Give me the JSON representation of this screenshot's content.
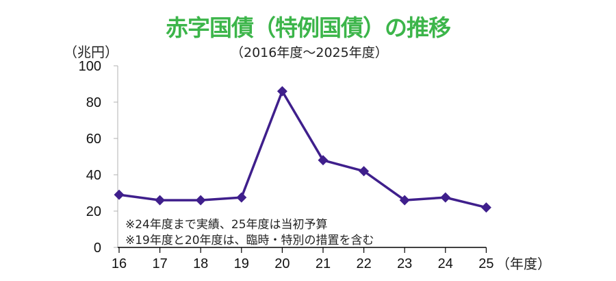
{
  "colors": {
    "title": "#3cb54a",
    "line": "#3f1f8c",
    "axis": "#000000",
    "y_axis": "#b0b0b0"
  },
  "chart_data": {
    "type": "line",
    "title": "赤字国債（特例国債）の推移",
    "subtitle": "（2016年度～2025年度）",
    "xlabel": "（年度）",
    "ylabel": "（兆円）",
    "categories": [
      "16",
      "17",
      "18",
      "19",
      "20",
      "21",
      "22",
      "23",
      "24",
      "25"
    ],
    "series": [
      {
        "name": "赤字国債（特例国債）",
        "values": [
          29,
          26,
          26,
          27.5,
          86,
          48,
          42,
          26,
          27.5,
          22
        ],
        "marker": "diamond"
      }
    ],
    "ylim": [
      0,
      100
    ],
    "yticks": [
      0,
      20,
      40,
      60,
      80,
      100
    ],
    "grid": false,
    "legend": "none",
    "annotations": [
      "※24年度まで実績、25年度は当初予算",
      "※19年度と20年度は、臨時・特別の措置を含む"
    ]
  }
}
